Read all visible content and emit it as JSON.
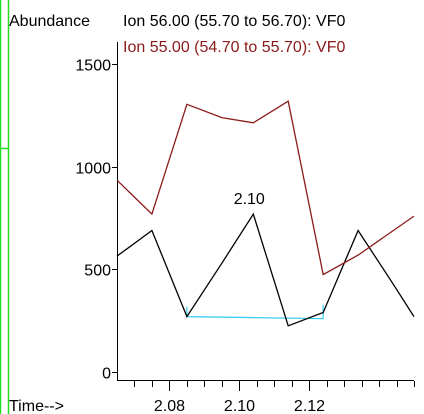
{
  "colors": {
    "border_accent": "#22dd22",
    "series_56": "#000000",
    "series_55": "#8b1a1a",
    "baseline": "#33ccee"
  },
  "header": {
    "abundance_label": "Abundance",
    "ion_56_label": "Ion  56.00 (55.70 to 56.70): VF0",
    "ion_55_label": "Ion  55.00 (54.70 to 55.70): VF0",
    "time_label": "Time-->"
  },
  "chart_data": {
    "type": "line",
    "xlabel": "Time-->",
    "ylabel": "Abundance",
    "xlim": [
      2.065,
      2.15
    ],
    "ylim": [
      0,
      1560
    ],
    "x_ticks": [
      2.08,
      2.1,
      2.12
    ],
    "x_tick_labels": [
      "2.08",
      "2.10",
      "2.12"
    ],
    "y_ticks": [
      0,
      500,
      1000,
      1500
    ],
    "y_tick_labels": [
      "0",
      "500",
      "1000",
      "1500"
    ],
    "series": [
      {
        "name": "Ion  56.00 (55.70 to 56.70): VF0",
        "x": [
          2.065,
          2.075,
          2.085,
          2.095,
          2.104,
          2.114,
          2.124,
          2.134,
          2.144,
          2.15
        ],
        "y": [
          565,
          690,
          270,
          530,
          770,
          225,
          290,
          690,
          430,
          270
        ]
      },
      {
        "name": "Ion  55.00 (54.70 to 55.70): VF0",
        "x": [
          2.065,
          2.075,
          2.085,
          2.095,
          2.104,
          2.114,
          2.124,
          2.134,
          2.15
        ],
        "y": [
          935,
          770,
          1305,
          1240,
          1215,
          1320,
          475,
          570,
          760
        ]
      }
    ],
    "annotations": [
      {
        "text": "2.10",
        "x": 2.104,
        "y": 770
      }
    ],
    "baseline": {
      "x_start": 2.085,
      "x_end": 2.124,
      "y_start": 270,
      "y_end": 260
    }
  }
}
